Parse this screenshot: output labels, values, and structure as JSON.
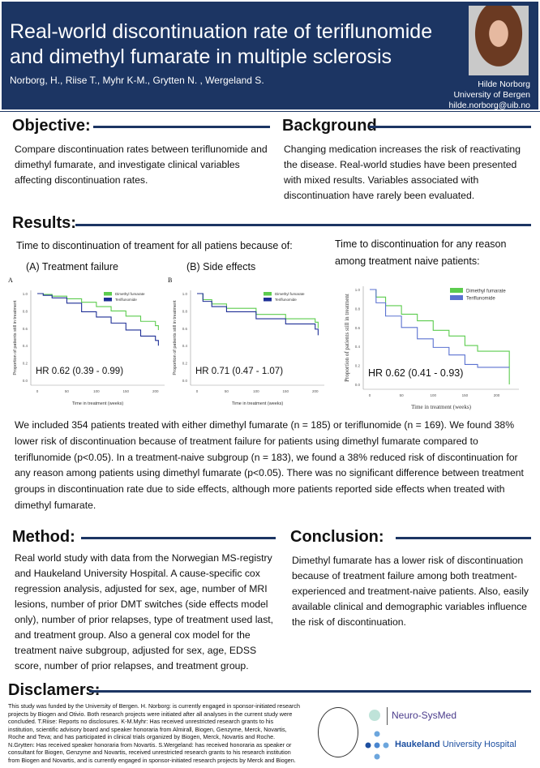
{
  "header": {
    "title": "Real-world discontinuation rate of teriflunomide and dimethyl fumarate in multiple sclerosis",
    "authors": "Norborg, H., Riise T., Myhr K-M., Grytten N. , Wergeland S.",
    "presenter_name": "Hilde Norborg",
    "presenter_affiliation": "University of Bergen",
    "presenter_email": "hilde.norborg@uib.no"
  },
  "objective": {
    "heading": "Objective:",
    "text": "Compare discontinuation rates between teriflunomide and dimethyl fumarate, and investigate clinical variables affecting discontinuation rates."
  },
  "background": {
    "heading": "Background",
    "text": "Changing medication increases the risk of reactivating the disease. Real-world studies have been presented with mixed results. Variables associated with discontinuation have rarely been evaluated."
  },
  "results": {
    "heading": "Results:",
    "left_caption": "Time to discontinuation of treament for all patiens because of:",
    "right_caption": "Time to discontinuation for any reason among treatment naive patients:",
    "label_a": "(A) Treatment failure",
    "label_b": "(B) Side effects",
    "paragraph": "We included 354 patients treated with either dimethyl fumarate (n = 185) or teriflunomide (n = 169). We found 38% lower risk of discontinuation because of treatment failure for patients using dimethyl fumarate compared to teriflunomide (p<0.05). In a treatment-naive subgroup (n = 183), we found a 38% reduced risk of discontinuation for any reason among patients using dimethyl fumarate (p<0.05). There was no significant difference between treatment groups in discontinuation rate due to side effects, although more patients reported side effects when treated with dimethyl fumarate."
  },
  "chart_data": [
    {
      "type": "line",
      "panel_letter": "A",
      "hr_text": "HR 0.62 (0.39 - 0.99)",
      "xlabel": "Time in treatment (weeks)",
      "ylabel": "Proportion of patients still in treatment",
      "xlim": [
        0,
        210
      ],
      "ylim": [
        0,
        1
      ],
      "xticks": [
        0,
        50,
        100,
        150,
        200
      ],
      "yticks": [
        0.0,
        0.2,
        0.4,
        0.6,
        0.8,
        1.0
      ],
      "legend": "top-right",
      "series": [
        {
          "name": "Dimethyl fumarate",
          "color": "#5ccc4e",
          "x": [
            0,
            10,
            25,
            50,
            75,
            100,
            125,
            150,
            175,
            200,
            205,
            205
          ],
          "y": [
            1,
            0.99,
            0.97,
            0.94,
            0.9,
            0.85,
            0.8,
            0.74,
            0.68,
            0.63,
            0.61,
            0.58
          ]
        },
        {
          "name": "Teriflunomide",
          "color": "#1e2f96",
          "x": [
            0,
            10,
            25,
            50,
            75,
            100,
            125,
            150,
            175,
            200,
            205,
            205
          ],
          "y": [
            1,
            0.98,
            0.95,
            0.89,
            0.79,
            0.73,
            0.66,
            0.58,
            0.51,
            0.46,
            0.44,
            0.4
          ]
        }
      ]
    },
    {
      "type": "line",
      "panel_letter": "B",
      "hr_text": "HR 0.71 (0.47 - 1.07)",
      "xlabel": "Time in treatment (weeks)",
      "ylabel": "Proportion of patients still in treatment",
      "xlim": [
        0,
        210
      ],
      "ylim": [
        0,
        1
      ],
      "xticks": [
        0,
        50,
        100,
        150,
        200
      ],
      "yticks": [
        0.0,
        0.2,
        0.4,
        0.6,
        0.8,
        1.0
      ],
      "legend": "top-right",
      "series": [
        {
          "name": "Dimethyl fumarate",
          "color": "#5ccc4e",
          "x": [
            0,
            10,
            25,
            50,
            100,
            150,
            200,
            205,
            205
          ],
          "y": [
            1,
            0.93,
            0.88,
            0.83,
            0.76,
            0.71,
            0.67,
            0.65,
            0.6
          ]
        },
        {
          "name": "Teriflunomide",
          "color": "#1e2f96",
          "x": [
            0,
            10,
            25,
            50,
            100,
            150,
            200,
            205,
            205
          ],
          "y": [
            1,
            0.91,
            0.85,
            0.79,
            0.71,
            0.65,
            0.59,
            0.57,
            0.52
          ]
        }
      ]
    },
    {
      "type": "line",
      "hr_text": "HR 0.62 (0.41 - 0.93)",
      "xlabel": "Time in treatment (weeks)",
      "ylabel": "Proportion of patients still in treatment",
      "xlim": [
        0,
        230
      ],
      "ylim": [
        0,
        1
      ],
      "xticks": [
        0,
        50,
        100,
        150,
        200
      ],
      "yticks": [
        0.0,
        0.2,
        0.4,
        0.6,
        0.8,
        1.0
      ],
      "legend": "top-right",
      "series": [
        {
          "name": "Dimethyl fumarate",
          "color": "#5ccc4e",
          "x": [
            0,
            10,
            25,
            50,
            75,
            100,
            125,
            150,
            170,
            220,
            220
          ],
          "y": [
            1,
            0.92,
            0.83,
            0.74,
            0.67,
            0.57,
            0.51,
            0.41,
            0.35,
            0.35,
            0
          ]
        },
        {
          "name": "Teriflunomide",
          "color": "#5b72d0",
          "x": [
            0,
            10,
            25,
            50,
            75,
            100,
            125,
            150,
            170,
            220
          ],
          "y": [
            1,
            0.86,
            0.72,
            0.6,
            0.48,
            0.39,
            0.31,
            0.21,
            0.18,
            0.18
          ]
        }
      ]
    }
  ],
  "method": {
    "heading": "Method:",
    "text": "Real world study with data from the Norwegian MS-registry and Haukeland University Hospital. A cause-specific cox regression analysis, adjusted for sex, age, number of MRI lesions, number of prior DMT switches (side effects model only), number of prior relapses, type of treatment used last, and treatment group. Also a general cox model for the treatment naive subgroup, adjusted for  sex, age, EDSS score, number of prior relapses, and treatment group."
  },
  "conclusion": {
    "heading": "Conclusion:",
    "text": "Dimethyl fumarate has a lower risk of discontinuation because of treatment failure among both treatment-experienced and treatment-naive patients. Also, easily available clinical and demographic variables influence the risk of discontinuation."
  },
  "disclaimers": {
    "heading": "Disclamers:",
    "text": "This study was funded by the University of Bergen. H. Norborg: is currently engaged in sponsor-initiated research projects by Biogen and Otivio. Both research projects were initiated after all analyses in the current study were concluded. T.Riise: Reports no disclosures. K-M.Myhr: Has received unrestricted research grants to his institution, scientific advisory board and speaker honoraria from Almirall, Biogen, Genzyme, Merck, Novartis, Roche and Teva; and has participated in clinical trials organized by Biogen, Merck, Novartis and Roche. N.Grytten: Has received speaker honoraria from Novartis. S.Wergeland: has received honoraria as speaker or consultant for Biogen, Genzyme and Novartis, received unrestricted research grants to his research institution from Biogen and Novartis, and is currently engaged in sponsor-initiated research projects by Merck and Biogen."
  },
  "logos": {
    "uib": "UNIVERSITAS BERGENSIS",
    "neuro": "Neuro-SysMed",
    "haukeland_bold": "Haukeland",
    "haukeland_rest": " University Hospital"
  },
  "colors": {
    "navy": "#1c3563",
    "dmf": "#5ccc4e",
    "teri": "#1e2f96"
  }
}
